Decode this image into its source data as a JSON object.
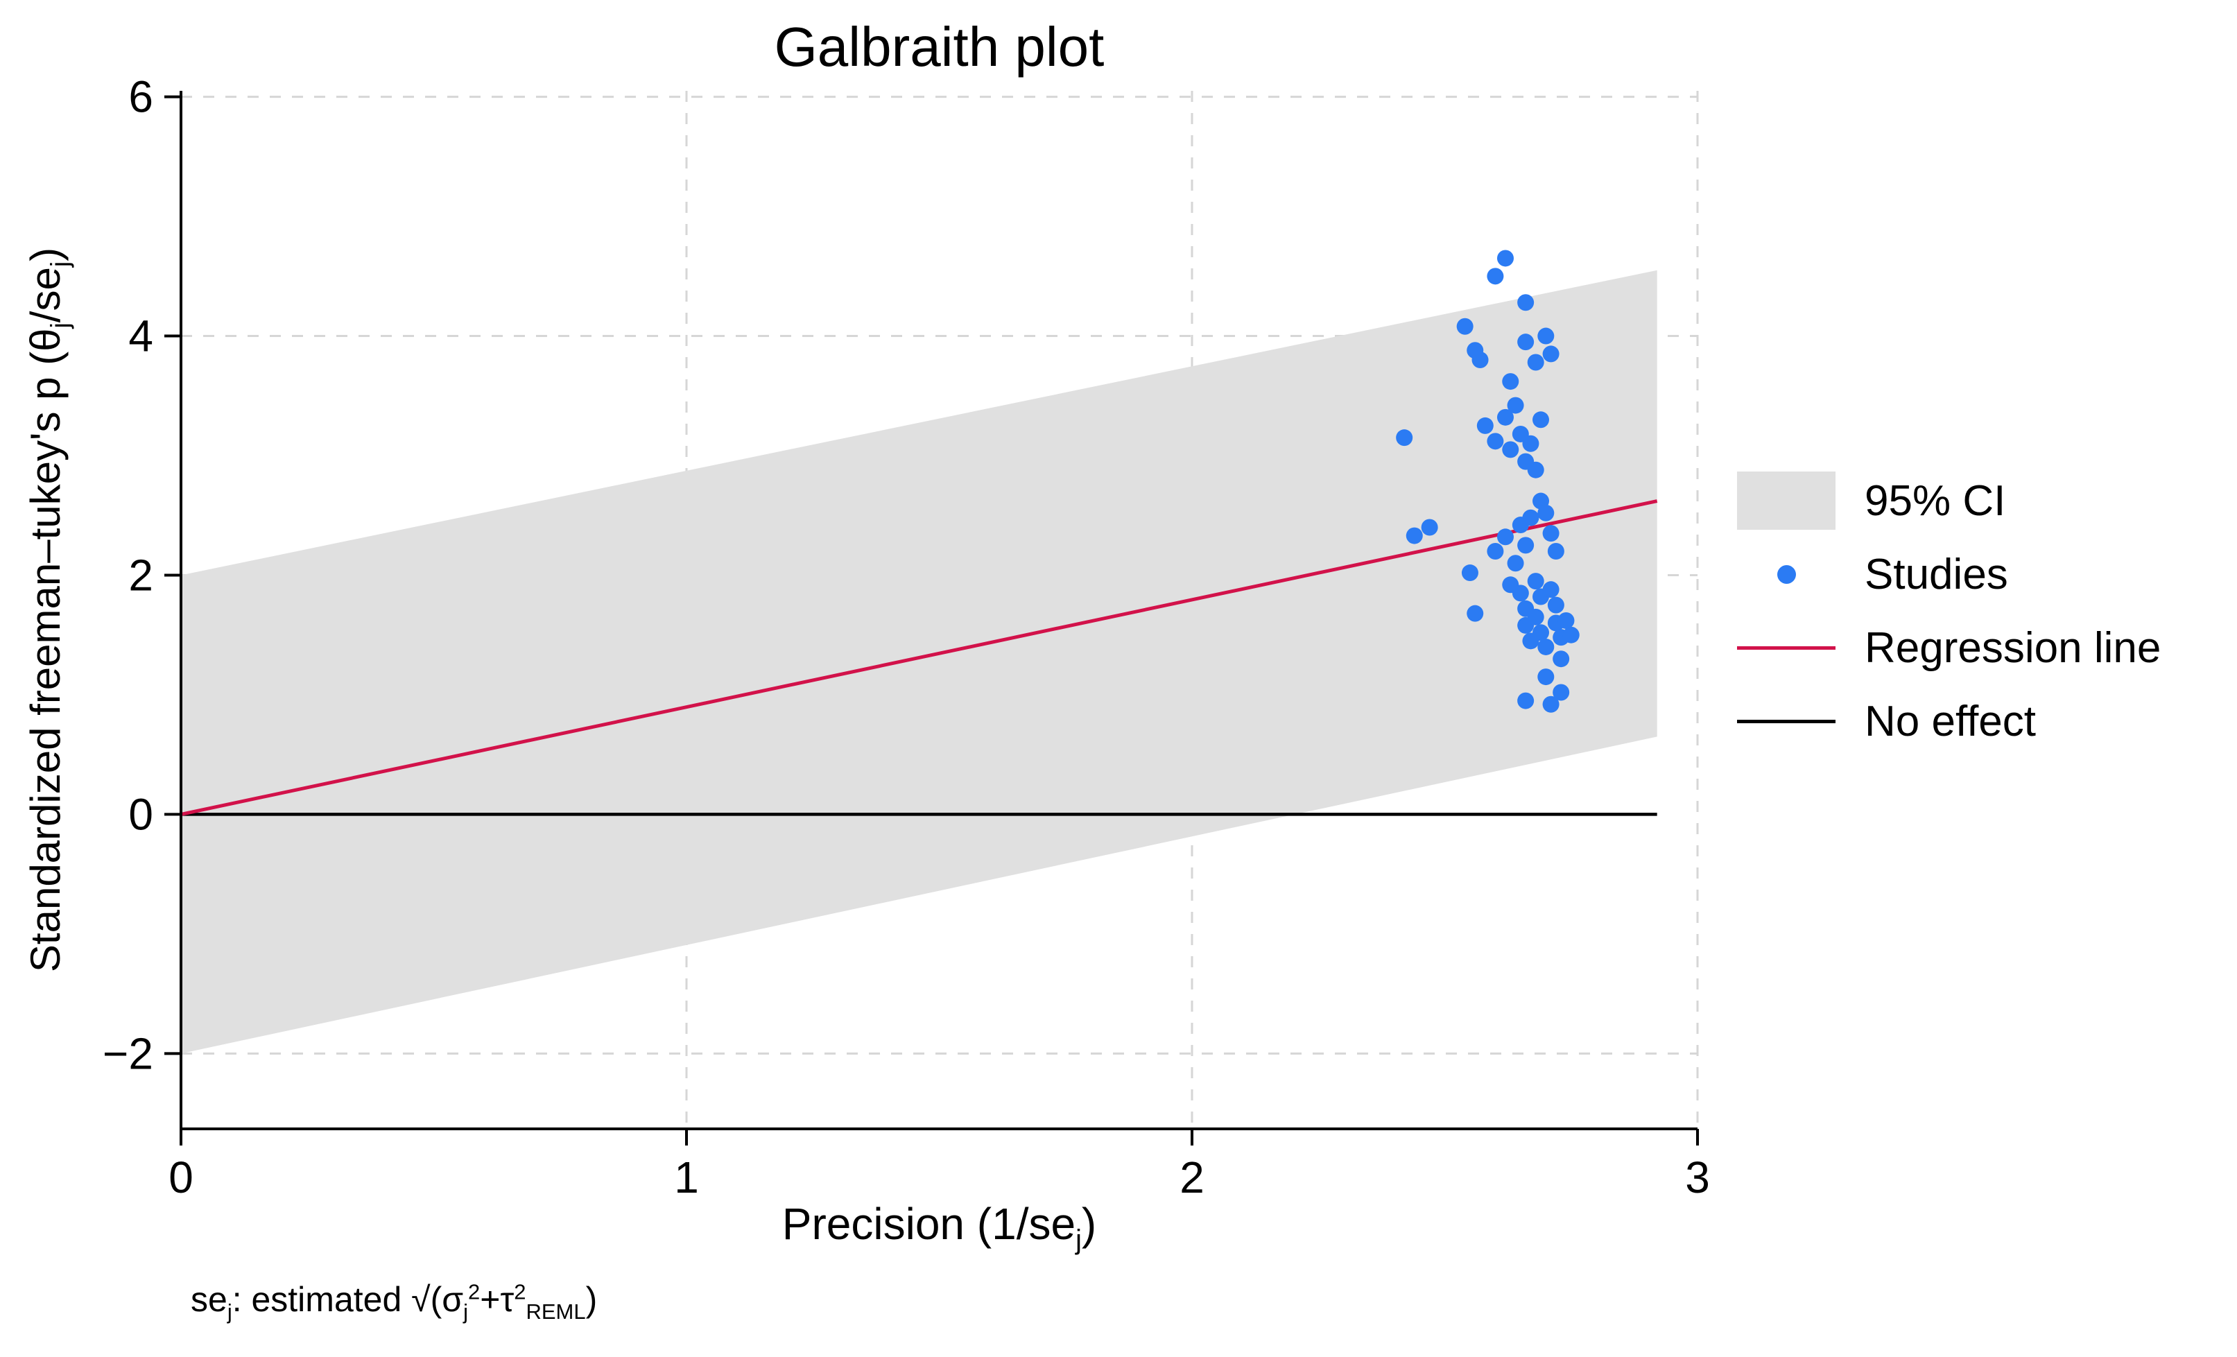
{
  "chart_data": {
    "type": "scatter",
    "title": "Galbraith plot",
    "xlabel_parts": [
      "Precision (1/se",
      "j",
      ")"
    ],
    "ylabel_parts": [
      "Standardized freeman–tukey's p (θ",
      "j",
      "/se",
      "j",
      ")"
    ],
    "footnote_parts": [
      "se",
      "j",
      ": estimated √(σ",
      "j",
      "2",
      "+τ",
      "2",
      "REML",
      ")"
    ],
    "xlim": [
      0,
      3
    ],
    "ylim": [
      -2.63,
      6.05
    ],
    "x_ticks": [
      0,
      1,
      2,
      3
    ],
    "x_tick_labels": [
      "0",
      "1",
      "2",
      "3"
    ],
    "y_ticks": [
      -2,
      0,
      2,
      4,
      6
    ],
    "y_tick_labels": [
      "−2",
      "0",
      "2",
      "4",
      "6"
    ],
    "x_grid": [
      1,
      2,
      3
    ],
    "y_grid": [
      -2,
      2,
      4,
      6
    ],
    "grid_on": true,
    "ci_band": {
      "x0": 0,
      "lower0": -2,
      "upper0": 2,
      "x1": 2.92,
      "lower1": 0.65,
      "upper1": 4.55
    },
    "regression_line": {
      "x0": 0,
      "y0": 0,
      "x1": 2.92,
      "y1": 2.62
    },
    "no_effect_line": {
      "x0": 0,
      "x1": 2.92,
      "y": 0
    },
    "points": [
      [
        2.42,
        3.15
      ],
      [
        2.44,
        2.33
      ],
      [
        2.47,
        2.4
      ],
      [
        2.54,
        4.08
      ],
      [
        2.56,
        3.88
      ],
      [
        2.57,
        3.8
      ],
      [
        2.55,
        2.02
      ],
      [
        2.56,
        1.68
      ],
      [
        2.6,
        4.5
      ],
      [
        2.62,
        4.65
      ],
      [
        2.58,
        3.25
      ],
      [
        2.6,
        3.12
      ],
      [
        2.62,
        3.32
      ],
      [
        2.63,
        3.05
      ],
      [
        2.6,
        2.2
      ],
      [
        2.62,
        2.32
      ],
      [
        2.63,
        3.62
      ],
      [
        2.64,
        3.42
      ],
      [
        2.64,
        2.1
      ],
      [
        2.63,
        1.92
      ],
      [
        2.66,
        4.28
      ],
      [
        2.66,
        3.95
      ],
      [
        2.65,
        3.18
      ],
      [
        2.66,
        2.95
      ],
      [
        2.67,
        3.1
      ],
      [
        2.65,
        2.42
      ],
      [
        2.66,
        2.25
      ],
      [
        2.67,
        2.48
      ],
      [
        2.65,
        1.85
      ],
      [
        2.66,
        1.72
      ],
      [
        2.66,
        1.58
      ],
      [
        2.67,
        1.45
      ],
      [
        2.66,
        0.95
      ],
      [
        2.68,
        3.78
      ],
      [
        2.69,
        3.3
      ],
      [
        2.68,
        2.88
      ],
      [
        2.69,
        2.62
      ],
      [
        2.7,
        2.52
      ],
      [
        2.68,
        1.95
      ],
      [
        2.69,
        1.82
      ],
      [
        2.68,
        1.65
      ],
      [
        2.69,
        1.52
      ],
      [
        2.7,
        1.4
      ],
      [
        2.7,
        1.15
      ],
      [
        2.71,
        0.92
      ],
      [
        2.7,
        4.0
      ],
      [
        2.71,
        3.85
      ],
      [
        2.71,
        2.35
      ],
      [
        2.72,
        2.2
      ],
      [
        2.71,
        1.88
      ],
      [
        2.72,
        1.75
      ],
      [
        2.72,
        1.6
      ],
      [
        2.73,
        1.48
      ],
      [
        2.73,
        1.3
      ],
      [
        2.74,
        1.62
      ],
      [
        2.75,
        1.5
      ],
      [
        2.73,
        1.02
      ]
    ],
    "legend": [
      {
        "label": "95% CI",
        "type": "area"
      },
      {
        "label": "Studies",
        "type": "marker"
      },
      {
        "label": "Regression line",
        "type": "line"
      },
      {
        "label": "No effect",
        "type": "line-black"
      }
    ],
    "legend_position": "right",
    "colors": {
      "band": "#e0e0e0",
      "points": "#2b7bf3",
      "regression": "#d2124a",
      "no_effect": "#000000",
      "grid": "#d6d6d6",
      "axis": "#000000",
      "text": "#000000",
      "background": "#ffffff"
    }
  }
}
